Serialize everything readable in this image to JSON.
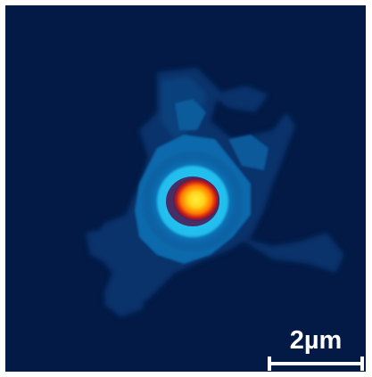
{
  "image": {
    "background_color": "#021a45",
    "colormap": [
      "#021a45",
      "#0a3a78",
      "#0b6fb3",
      "#18a8e8",
      "#27c9f5",
      "#4a1e57",
      "#c81a1a",
      "#ff7a00",
      "#ffd21a",
      "#ffef3a"
    ]
  },
  "scale_bar": {
    "label": "2µm",
    "color": "#ffffff"
  }
}
